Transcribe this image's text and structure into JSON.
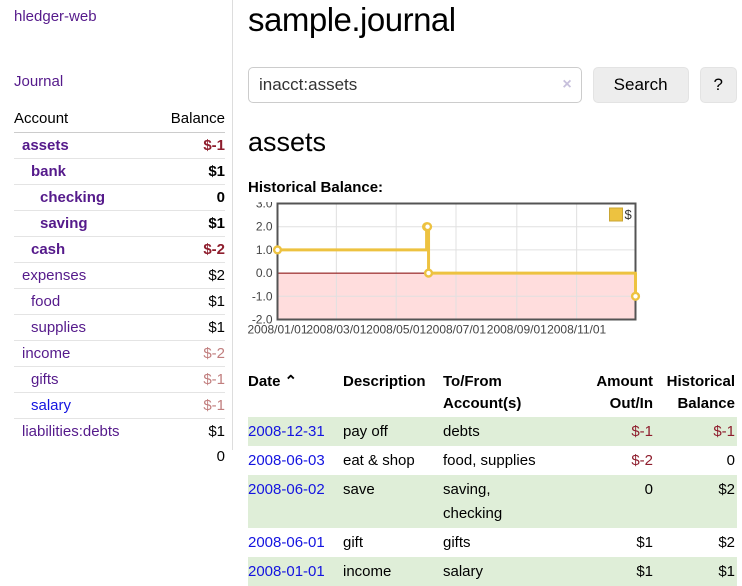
{
  "sidebar": {
    "app_title": "hledger-web",
    "nav": {
      "journal_label": "Journal"
    },
    "table": {
      "account_header": "Account",
      "balance_header": "Balance",
      "rows": [
        {
          "account": "assets",
          "balance": "$-1",
          "depth": 0,
          "bold": true,
          "negative": true
        },
        {
          "account": "bank",
          "balance": "$1",
          "depth": 1,
          "bold": true,
          "negative": false
        },
        {
          "account": "checking",
          "balance": "0",
          "depth": 2,
          "bold": true,
          "negative": false
        },
        {
          "account": "saving",
          "balance": "$1",
          "depth": 2,
          "bold": true,
          "negative": false
        },
        {
          "account": "cash",
          "balance": "$-2",
          "depth": 1,
          "bold": true,
          "negative": true
        },
        {
          "account": "expenses",
          "balance": "$2",
          "depth": 0,
          "bold": false,
          "negative": false
        },
        {
          "account": "food",
          "balance": "$1",
          "depth": 1,
          "bold": false,
          "negative": false
        },
        {
          "account": "supplies",
          "balance": "$1",
          "depth": 1,
          "bold": false,
          "negative": false
        },
        {
          "account": "income",
          "balance": "$-2",
          "depth": 0,
          "bold": false,
          "negative": true
        },
        {
          "account": "gifts",
          "balance": "$-1",
          "depth": 1,
          "bold": false,
          "negative": true
        },
        {
          "account": "salary",
          "balance": "$-1",
          "depth": 1,
          "bold": false,
          "negative": true,
          "link_blue": true
        },
        {
          "account": "liabilities:debts",
          "balance": "$1",
          "depth": 0,
          "bold": false,
          "negative": false
        }
      ],
      "total": "0"
    }
  },
  "header": {
    "title": "sample.journal"
  },
  "search": {
    "value": "inacct:assets",
    "clear_icon": "×",
    "button_label": "Search",
    "help_label": "?"
  },
  "account_page": {
    "heading": "assets",
    "chart_label": "Historical Balance:"
  },
  "chart_data": {
    "type": "line",
    "style": "steps",
    "title": "Historical Balance:",
    "series": [
      {
        "name": "$",
        "color": "#edc240",
        "points": [
          [
            "2008-01-01",
            1
          ],
          [
            "2008-06-01",
            2
          ],
          [
            "2008-06-02",
            2
          ],
          [
            "2008-06-03",
            0
          ],
          [
            "2008-12-31",
            -1
          ]
        ]
      }
    ],
    "ylim": [
      -2,
      3
    ],
    "yticks": [
      3,
      2,
      1,
      0,
      -1,
      -2
    ],
    "xticks": [
      "2008/01/01",
      "2008/03/01",
      "2008/05/01",
      "2008/07/01",
      "2008/09/01",
      "2008/11/01"
    ],
    "x_start": "2008-01-01",
    "x_end": "2008-12-31",
    "grid": true,
    "legend_position": "top-right",
    "negative_region_color": "#ffdddd",
    "zero_line_color": "#800000",
    "border_color": "#545454",
    "grid_color": "#e0e0e0",
    "tick_label_color": "#444444"
  },
  "register": {
    "headers": {
      "date": "Date",
      "sort_indicator": "⌃",
      "description": "Description",
      "accounts": "To/From Account(s)",
      "amount": "Amount Out/In",
      "balance": "Historical Balance"
    },
    "rows": [
      {
        "date": "2008-12-31",
        "description": "pay off",
        "accounts": "debts",
        "amount": "$-1",
        "amount_negative": true,
        "balance": "$-1",
        "balance_negative": true
      },
      {
        "date": "2008-06-03",
        "description": "eat & shop",
        "accounts": "food, supplies",
        "amount": "$-2",
        "amount_negative": true,
        "balance": "0",
        "balance_negative": false
      },
      {
        "date": "2008-06-02",
        "description": "save",
        "accounts": "saving,\nchecking",
        "amount": "0",
        "amount_negative": false,
        "balance": "$2",
        "balance_negative": false
      },
      {
        "date": "2008-06-01",
        "description": "gift",
        "accounts": "gifts",
        "amount": "$1",
        "amount_negative": false,
        "balance": "$2",
        "balance_negative": false
      },
      {
        "date": "2008-01-01",
        "description": "income",
        "accounts": "salary",
        "amount": "$1",
        "amount_negative": false,
        "balance": "$1",
        "balance_negative": false
      }
    ]
  }
}
